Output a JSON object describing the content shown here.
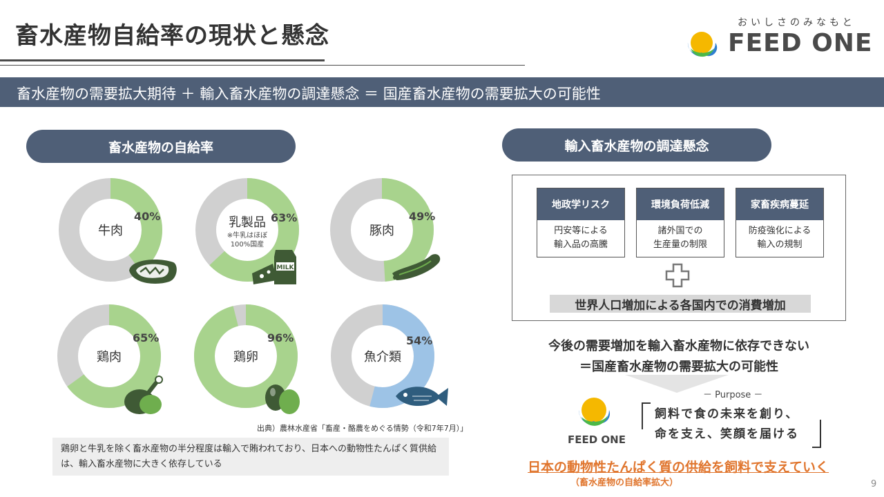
{
  "header": {
    "title": "畜水産物自給率の現状と懸念",
    "tagline": "おいしさのみなもと",
    "brand": "FEED ONE"
  },
  "banner": {
    "text": "畜水産物の需要拡大期待 ＋ 輸入畜水産物の調達懸念 ＝ 国産畜水産物の需要拡大の可能性"
  },
  "left_panel": {
    "heading": "畜水産物の自給率",
    "source": "出典）農林水産省「畜産・酪農をめぐる情勢（令和7年7月）」",
    "note": "鶏卵と牛乳を除く畜水産物の半分程度は輸入で賄われており、日本への動物性たんぱく質供給は、輸入畜水産物に大きく依存している"
  },
  "chart_data": {
    "type": "donut",
    "items": [
      {
        "label": "牛肉",
        "value": 40,
        "value_label": "40%",
        "color": "#a8d38d",
        "icon": "steak-icon"
      },
      {
        "label": "乳製品",
        "value": 63,
        "value_label": "63%",
        "color": "#a8d38d",
        "note": "※牛乳はほぼ\n100%国産",
        "icon": "cheese-milk-icon"
      },
      {
        "label": "豚肉",
        "value": 49,
        "value_label": "49%",
        "color": "#a8d38d",
        "icon": "sausage-icon"
      },
      {
        "label": "鶏肉",
        "value": 65,
        "value_label": "65%",
        "color": "#a8d38d",
        "icon": "chicken-leg-icon"
      },
      {
        "label": "鶏卵",
        "value": 96,
        "value_label": "96%",
        "color": "#a8d38d",
        "icon": "eggs-icon"
      },
      {
        "label": "魚介類",
        "value": 54,
        "value_label": "54%",
        "color": "#9dc3e6",
        "icon": "fish-icon"
      }
    ],
    "remainder_color": "#d0d0d0"
  },
  "right_panel": {
    "heading": "輸入畜水産物の調達懸念",
    "risks": [
      {
        "title": "地政学リスク",
        "body": "円安等による\n輸入品の高騰"
      },
      {
        "title": "環境負荷低減",
        "body": "諸外国での\n生産量の制限"
      },
      {
        "title": "家畜疾病蔓延",
        "body": "防疫強化による\n輸入の規制"
      }
    ],
    "plus_icon": "plus-icon",
    "consumption": "世界人口増加による各国内での消費増加",
    "conclusion_1": "今後の需要増加を輸入畜水産物に依存できない",
    "conclusion_2": "＝国産畜水産物の需要拡大の可能性",
    "purpose_label": "－ Purpose －",
    "purpose_text": "飼料で食の未来を創り、\n命を支え、笑顔を届ける",
    "logo_text": "FEED ONE",
    "mission": "日本の動物性たんぱく質の供給を飼料で支えていく",
    "mission_sub": "（畜水産物の自給率拡大）"
  },
  "page_number": "9"
}
